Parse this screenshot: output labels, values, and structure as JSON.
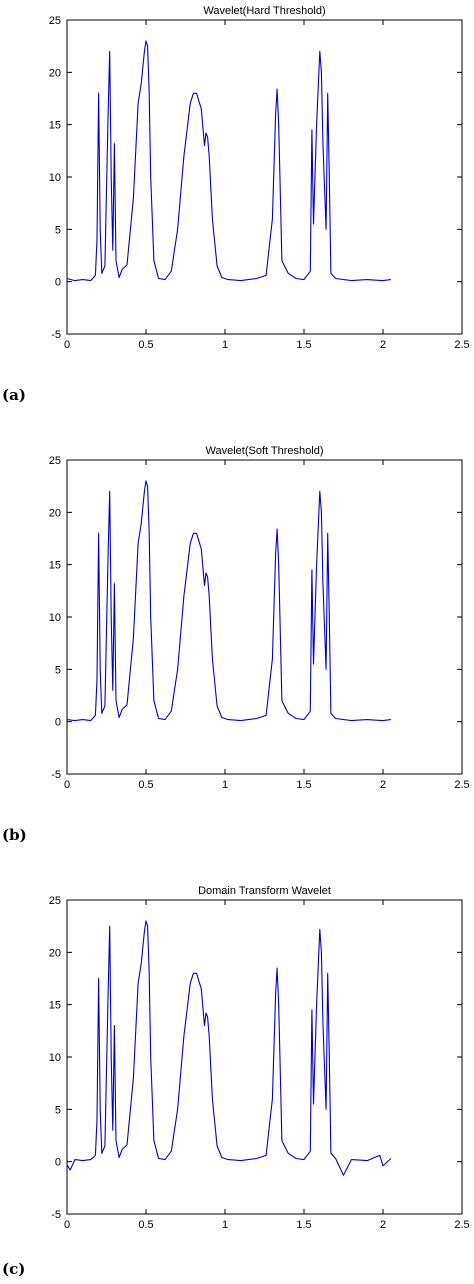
{
  "chart_data": [
    {
      "type": "line",
      "panel_label": "(a)",
      "title": "Wavelet(Hard Threshold)",
      "xlabel": "",
      "ylabel": "",
      "xlim": [
        0,
        2.5
      ],
      "ylim": [
        -5,
        25
      ],
      "xticks": [
        0,
        0.5,
        1,
        1.5,
        2,
        2.5
      ],
      "yticks": [
        -5,
        0,
        5,
        10,
        15,
        20,
        25
      ],
      "grid": false,
      "line_color": "#0000cc",
      "series": [
        {
          "x": [
            0,
            0.05,
            0.1,
            0.15,
            0.18,
            0.19,
            0.2,
            0.21,
            0.22,
            0.24,
            0.26,
            0.27,
            0.28,
            0.29,
            0.3,
            0.31,
            0.33,
            0.35,
            0.38,
            0.42,
            0.45,
            0.47,
            0.49,
            0.5,
            0.51,
            0.52,
            0.53,
            0.55,
            0.58,
            0.62,
            0.66,
            0.7,
            0.74,
            0.78,
            0.8,
            0.82,
            0.85,
            0.87,
            0.88,
            0.89,
            0.9,
            0.92,
            0.95,
            0.98,
            1.02,
            1.1,
            1.2,
            1.26,
            1.3,
            1.32,
            1.33,
            1.34,
            1.36,
            1.4,
            1.45,
            1.5,
            1.54,
            1.55,
            1.56,
            1.58,
            1.6,
            1.61,
            1.62,
            1.64,
            1.65,
            1.66,
            1.67,
            1.7,
            1.8,
            1.9,
            2.0,
            2.05
          ],
          "y": [
            0.3,
            0.1,
            0.2,
            0.1,
            0.6,
            4,
            18,
            5,
            0.8,
            1.5,
            16,
            22,
            10,
            3,
            13.2,
            2,
            0.4,
            1.2,
            1.6,
            8,
            17,
            19,
            22,
            23,
            22.5,
            18,
            10,
            2,
            0.3,
            0.2,
            1,
            5,
            12,
            17,
            18,
            18,
            16.5,
            13,
            14.2,
            13.8,
            12,
            6,
            1.5,
            0.4,
            0.2,
            0.1,
            0.3,
            0.6,
            6,
            16,
            18.4,
            15,
            2,
            0.8,
            0.3,
            0.2,
            1,
            14.5,
            5.5,
            15,
            22,
            20,
            13,
            5,
            18,
            10,
            0.8,
            0.3,
            0.1,
            0.2,
            0.1,
            0.2
          ]
        }
      ]
    },
    {
      "type": "line",
      "panel_label": "(b)",
      "title": "Wavelet(Soft Threshold)",
      "xlabel": "",
      "ylabel": "",
      "xlim": [
        0,
        2.5
      ],
      "ylim": [
        -5,
        25
      ],
      "xticks": [
        0,
        0.5,
        1,
        1.5,
        2,
        2.5
      ],
      "yticks": [
        -5,
        0,
        5,
        10,
        15,
        20,
        25
      ],
      "grid": false,
      "line_color": "#0000cc",
      "series": [
        {
          "x": [
            0,
            0.05,
            0.1,
            0.15,
            0.18,
            0.19,
            0.2,
            0.21,
            0.22,
            0.24,
            0.26,
            0.27,
            0.28,
            0.29,
            0.3,
            0.31,
            0.33,
            0.35,
            0.38,
            0.42,
            0.45,
            0.47,
            0.49,
            0.5,
            0.51,
            0.52,
            0.53,
            0.55,
            0.58,
            0.62,
            0.66,
            0.7,
            0.74,
            0.78,
            0.8,
            0.82,
            0.85,
            0.87,
            0.88,
            0.89,
            0.9,
            0.92,
            0.95,
            0.98,
            1.02,
            1.1,
            1.2,
            1.26,
            1.3,
            1.32,
            1.33,
            1.34,
            1.36,
            1.4,
            1.45,
            1.5,
            1.54,
            1.55,
            1.56,
            1.58,
            1.6,
            1.61,
            1.62,
            1.64,
            1.65,
            1.66,
            1.67,
            1.7,
            1.8,
            1.9,
            2.0,
            2.05
          ],
          "y": [
            0.2,
            0.1,
            0.2,
            0.1,
            0.6,
            4,
            18,
            5,
            0.8,
            1.5,
            16,
            22,
            10,
            3,
            13.2,
            2,
            0.4,
            1.2,
            1.6,
            8,
            17,
            19,
            22,
            23,
            22.5,
            18,
            10,
            2,
            0.3,
            0.2,
            1,
            5,
            12,
            17,
            18,
            18,
            16.5,
            13,
            14.2,
            13.8,
            12,
            6,
            1.5,
            0.4,
            0.2,
            0.1,
            0.3,
            0.6,
            6,
            16,
            18.4,
            15,
            2,
            0.8,
            0.3,
            0.2,
            1,
            14.5,
            5.5,
            15,
            22,
            20,
            13,
            5,
            18,
            10,
            0.8,
            0.3,
            0.1,
            0.2,
            0.1,
            0.2
          ]
        }
      ]
    },
    {
      "type": "line",
      "panel_label": "(c)",
      "title": "Domain Transform Wavelet",
      "xlabel": "",
      "ylabel": "",
      "xlim": [
        0,
        2.5
      ],
      "ylim": [
        -5,
        25
      ],
      "xticks": [
        0,
        0.5,
        1,
        1.5,
        2,
        2.5
      ],
      "yticks": [
        -5,
        0,
        5,
        10,
        15,
        20,
        25
      ],
      "grid": false,
      "line_color": "#0000cc",
      "series": [
        {
          "x": [
            0,
            0.02,
            0.05,
            0.1,
            0.15,
            0.18,
            0.19,
            0.2,
            0.21,
            0.22,
            0.24,
            0.26,
            0.27,
            0.28,
            0.29,
            0.3,
            0.31,
            0.33,
            0.35,
            0.38,
            0.42,
            0.45,
            0.47,
            0.49,
            0.5,
            0.51,
            0.52,
            0.53,
            0.55,
            0.58,
            0.62,
            0.66,
            0.7,
            0.74,
            0.78,
            0.8,
            0.82,
            0.85,
            0.87,
            0.88,
            0.89,
            0.9,
            0.92,
            0.95,
            0.98,
            1.02,
            1.1,
            1.2,
            1.26,
            1.3,
            1.32,
            1.33,
            1.34,
            1.36,
            1.4,
            1.45,
            1.5,
            1.54,
            1.55,
            1.56,
            1.58,
            1.6,
            1.61,
            1.62,
            1.64,
            1.65,
            1.66,
            1.67,
            1.7,
            1.75,
            1.8,
            1.9,
            1.98,
            2.0,
            2.05
          ],
          "y": [
            -0.3,
            -0.8,
            0.2,
            0.1,
            0.2,
            0.6,
            4,
            17.5,
            5,
            0.8,
            1.5,
            16,
            22.5,
            10,
            3,
            13,
            2,
            0.4,
            1.2,
            1.6,
            8,
            17,
            19,
            22,
            23,
            22.5,
            18,
            10,
            2,
            0.3,
            0.2,
            1,
            5,
            12,
            17,
            18,
            18,
            16.5,
            13,
            14.2,
            13.8,
            12,
            6,
            1.5,
            0.4,
            0.2,
            0.1,
            0.3,
            0.6,
            6,
            16,
            18.5,
            15,
            2,
            0.8,
            0.3,
            0.2,
            1,
            14.5,
            5.5,
            15,
            22.2,
            20,
            13,
            5,
            18,
            10,
            0.8,
            0.3,
            -1.3,
            0.2,
            0.1,
            0.6,
            -0.4,
            0.3
          ]
        }
      ]
    }
  ]
}
